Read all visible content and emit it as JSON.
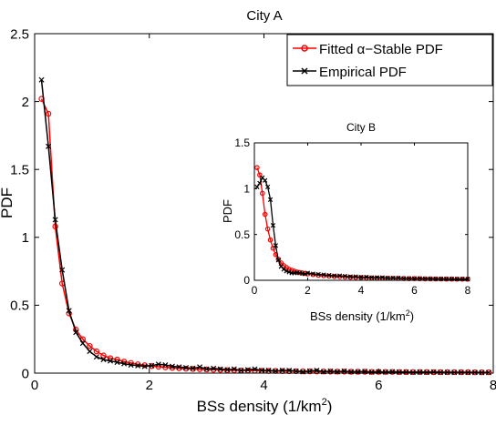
{
  "chart_data": [
    {
      "type": "line",
      "title": "City A",
      "xlabel": "BSs density (1/km",
      "xlabel_sup": "2",
      "xlabel_end": ")",
      "ylabel": "PDF",
      "xlim": [
        0,
        8
      ],
      "ylim": [
        0,
        2.5
      ],
      "xticks": [
        0,
        2,
        4,
        6,
        8
      ],
      "yticks": [
        0,
        0.5,
        1,
        1.5,
        2,
        2.5
      ],
      "xtick_labels": [
        "0",
        "2",
        "4",
        "6",
        "8"
      ],
      "ytick_labels": [
        "0",
        "0.5",
        "1",
        "1.5",
        "2",
        "2.5"
      ],
      "grid": false,
      "legend_position": "top-right",
      "series": [
        {
          "name": "Fitted α−Stable PDF",
          "color": "#ff0000",
          "marker": "circle",
          "x": [
            0.12,
            0.24,
            0.36,
            0.48,
            0.6,
            0.72,
            0.84,
            0.96,
            1.08,
            1.2,
            1.32,
            1.44,
            1.56,
            1.68,
            1.8,
            1.92,
            2.04,
            2.16,
            2.28,
            2.4,
            2.52,
            2.64,
            2.76,
            2.88,
            3.0,
            3.12,
            3.24,
            3.36,
            3.48,
            3.6,
            3.72,
            3.84,
            3.96,
            4.08,
            4.2,
            4.32,
            4.44,
            4.56,
            4.68,
            4.8,
            4.92,
            5.04,
            5.16,
            5.28,
            5.4,
            5.52,
            5.64,
            5.76,
            5.88,
            6.0,
            6.12,
            6.24,
            6.36,
            6.48,
            6.6,
            6.72,
            6.84,
            6.96,
            7.08,
            7.2,
            7.32,
            7.44,
            7.56,
            7.68,
            7.8,
            7.92
          ],
          "y": [
            2.02,
            1.91,
            1.08,
            0.66,
            0.44,
            0.32,
            0.25,
            0.2,
            0.16,
            0.13,
            0.11,
            0.1,
            0.085,
            0.075,
            0.065,
            0.058,
            0.052,
            0.047,
            0.043,
            0.039,
            0.036,
            0.033,
            0.031,
            0.029,
            0.027,
            0.025,
            0.024,
            0.022,
            0.021,
            0.02,
            0.019,
            0.018,
            0.017,
            0.016,
            0.016,
            0.015,
            0.014,
            0.014,
            0.013,
            0.013,
            0.012,
            0.012,
            0.011,
            0.011,
            0.011,
            0.01,
            0.01,
            0.01,
            0.009,
            0.009,
            0.009,
            0.009,
            0.008,
            0.008,
            0.008,
            0.008,
            0.008,
            0.007,
            0.007,
            0.007,
            0.007,
            0.007,
            0.007,
            0.006,
            0.006,
            0.006
          ]
        },
        {
          "name": "Empirical PDF",
          "color": "#000000",
          "marker": "x",
          "x": [
            0.12,
            0.24,
            0.36,
            0.48,
            0.6,
            0.72,
            0.84,
            0.96,
            1.08,
            1.2,
            1.32,
            1.44,
            1.56,
            1.68,
            1.8,
            1.92,
            2.04,
            2.16,
            2.28,
            2.4,
            2.52,
            2.64,
            2.76,
            2.88,
            3.0,
            3.12,
            3.24,
            3.36,
            3.48,
            3.6,
            3.72,
            3.84,
            3.96,
            4.08,
            4.2,
            4.32,
            4.44,
            4.56,
            4.68,
            4.8,
            4.92,
            5.04,
            5.16,
            5.28,
            5.4,
            5.52,
            5.64,
            5.76,
            5.88,
            6.0,
            6.12,
            6.24,
            6.36,
            6.48,
            6.6,
            6.72,
            6.84,
            6.96,
            7.08,
            7.2,
            7.32,
            7.44,
            7.56,
            7.68,
            7.8,
            7.92
          ],
          "y": [
            2.16,
            1.67,
            1.13,
            0.76,
            0.46,
            0.3,
            0.22,
            0.16,
            0.12,
            0.1,
            0.09,
            0.08,
            0.07,
            0.06,
            0.055,
            0.05,
            0.055,
            0.065,
            0.06,
            0.05,
            0.045,
            0.04,
            0.035,
            0.045,
            0.03,
            0.035,
            0.03,
            0.025,
            0.03,
            0.02,
            0.025,
            0.03,
            0.02,
            0.02,
            0.015,
            0.02,
            0.02,
            0.015,
            0.01,
            0.015,
            0.02,
            0.01,
            0.015,
            0.01,
            0.015,
            0.01,
            0.01,
            0.012,
            0.008,
            0.01,
            0.008,
            0.01,
            0.008,
            0.008,
            0.006,
            0.008,
            0.006,
            0.008,
            0.006,
            0.006,
            0.005,
            0.006,
            0.005,
            0.005,
            0.004,
            0.004
          ]
        }
      ]
    },
    {
      "type": "line",
      "title": "City B",
      "xlabel": "BSs density (1/km",
      "xlabel_sup": "2",
      "xlabel_end": ")",
      "ylabel": "PDF",
      "xlim": [
        0,
        8
      ],
      "ylim": [
        0,
        1.5
      ],
      "xticks": [
        0,
        2,
        4,
        6,
        8
      ],
      "yticks": [
        0,
        0.5,
        1,
        1.5
      ],
      "xtick_labels": [
        "0",
        "2",
        "4",
        "6",
        "8"
      ],
      "ytick_labels": [
        "0",
        "0.5",
        "1",
        "1.5"
      ],
      "grid": false,
      "series": [
        {
          "name": "Fitted α−Stable PDF",
          "color": "#ff0000",
          "marker": "circle",
          "x": [
            0.1,
            0.2,
            0.3,
            0.4,
            0.5,
            0.6,
            0.7,
            0.8,
            0.9,
            1.0,
            1.1,
            1.2,
            1.3,
            1.4,
            1.5,
            1.6,
            1.7,
            1.8,
            1.9,
            2.0,
            2.2,
            2.4,
            2.6,
            2.8,
            3.0,
            3.2,
            3.4,
            3.6,
            3.8,
            4.0,
            4.2,
            4.4,
            4.6,
            4.8,
            5.0,
            5.2,
            5.4,
            5.6,
            5.8,
            6.0,
            6.2,
            6.4,
            6.6,
            6.8,
            7.0,
            7.2,
            7.4,
            7.6,
            7.8,
            8.0
          ],
          "y": [
            1.23,
            1.15,
            0.95,
            0.72,
            0.56,
            0.44,
            0.35,
            0.28,
            0.23,
            0.19,
            0.16,
            0.14,
            0.12,
            0.11,
            0.1,
            0.09,
            0.085,
            0.08,
            0.075,
            0.07,
            0.062,
            0.055,
            0.05,
            0.046,
            0.042,
            0.039,
            0.036,
            0.033,
            0.031,
            0.029,
            0.027,
            0.026,
            0.024,
            0.023,
            0.022,
            0.021,
            0.02,
            0.019,
            0.018,
            0.018,
            0.017,
            0.016,
            0.016,
            0.015,
            0.015,
            0.014,
            0.014,
            0.013,
            0.013,
            0.012
          ]
        },
        {
          "name": "Empirical PDF",
          "color": "#000000",
          "marker": "x",
          "x": [
            0.1,
            0.2,
            0.3,
            0.4,
            0.5,
            0.6,
            0.7,
            0.8,
            0.9,
            1.0,
            1.1,
            1.2,
            1.3,
            1.4,
            1.5,
            1.6,
            1.7,
            1.8,
            1.9,
            2.0,
            2.2,
            2.4,
            2.6,
            2.8,
            3.0,
            3.2,
            3.4,
            3.6,
            3.8,
            4.0,
            4.2,
            4.4,
            4.6,
            4.8,
            5.0,
            5.2,
            5.4,
            5.6,
            5.8,
            6.0,
            6.2,
            6.4,
            6.6,
            6.8,
            7.0,
            7.2,
            7.4,
            7.6,
            7.8,
            8.0
          ],
          "y": [
            1.02,
            1.06,
            1.12,
            1.09,
            1.02,
            0.88,
            0.6,
            0.38,
            0.22,
            0.15,
            0.12,
            0.1,
            0.09,
            0.08,
            0.08,
            0.085,
            0.08,
            0.075,
            0.07,
            0.08,
            0.07,
            0.065,
            0.06,
            0.055,
            0.05,
            0.05,
            0.045,
            0.04,
            0.04,
            0.035,
            0.035,
            0.03,
            0.03,
            0.03,
            0.025,
            0.025,
            0.025,
            0.02,
            0.02,
            0.02,
            0.02,
            0.018,
            0.018,
            0.016,
            0.016,
            0.015,
            0.015,
            0.014,
            0.014,
            0.013
          ]
        }
      ]
    }
  ]
}
